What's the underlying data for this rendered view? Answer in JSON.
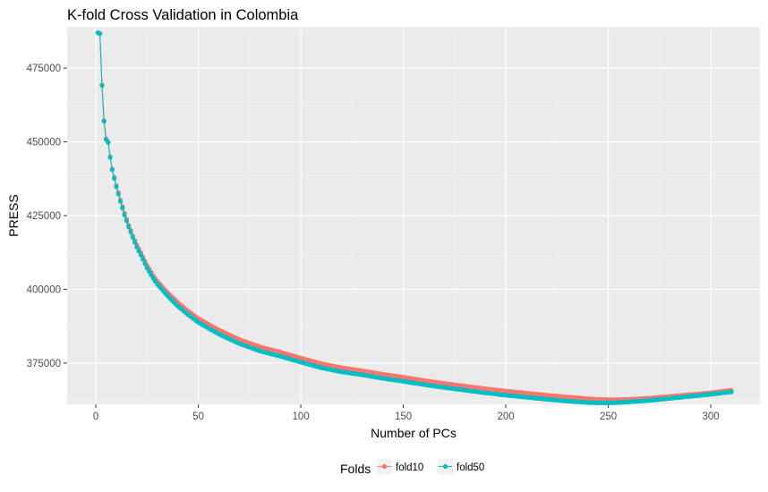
{
  "chart_data": {
    "type": "line",
    "title": "K-fold Cross Validation in Colombia",
    "xlabel": "Number of PCs",
    "ylabel": "PRESS",
    "xlim": [
      -14,
      324
    ],
    "ylim": [
      361000,
      489000
    ],
    "x_ticks": [
      0,
      50,
      100,
      150,
      200,
      250,
      300
    ],
    "x_tick_labels": [
      "0",
      "50",
      "100",
      "150",
      "200",
      "250",
      "300"
    ],
    "y_ticks": [
      375000,
      400000,
      425000,
      450000,
      475000
    ],
    "y_tick_labels": [
      "375000",
      "400000",
      "425000",
      "450000",
      "475000"
    ],
    "grid": true,
    "background": "#ebebeb",
    "legend": {
      "title": "Folds",
      "position": "bottom"
    },
    "x_range": [
      1,
      310
    ],
    "series": [
      {
        "name": "fold10",
        "color": "#f8766d",
        "x": [
          1,
          2,
          3,
          4,
          5,
          6,
          7,
          8,
          9,
          10,
          12,
          14,
          16,
          18,
          20,
          22,
          25,
          28,
          30,
          35,
          40,
          45,
          50,
          60,
          70,
          80,
          90,
          100,
          110,
          120,
          130,
          140,
          150,
          160,
          170,
          180,
          190,
          200,
          210,
          220,
          230,
          240,
          245,
          250,
          255,
          260,
          270,
          280,
          290,
          300,
          310
        ],
        "values": [
          487000,
          486800,
          469300,
          457200,
          451000,
          450000,
          445000,
          440800,
          438000,
          435200,
          430300,
          425800,
          421800,
          418200,
          415000,
          412400,
          408100,
          404600,
          402700,
          398900,
          395500,
          392600,
          390100,
          386200,
          383000,
          380500,
          378700,
          376700,
          374800,
          373400,
          372400,
          371200,
          370200,
          369100,
          368100,
          367200,
          366300,
          365500,
          364800,
          364100,
          363500,
          362900,
          362700,
          362600,
          362600,
          362700,
          363100,
          363700,
          364300,
          364900,
          365800
        ]
      },
      {
        "name": "fold50",
        "color": "#00bfc4",
        "x": [
          1,
          2,
          3,
          4,
          5,
          6,
          7,
          8,
          9,
          10,
          12,
          14,
          16,
          18,
          20,
          22,
          25,
          28,
          30,
          35,
          40,
          45,
          50,
          60,
          70,
          80,
          90,
          100,
          110,
          120,
          130,
          140,
          150,
          160,
          170,
          180,
          190,
          200,
          210,
          220,
          230,
          240,
          245,
          250,
          255,
          260,
          270,
          280,
          290,
          300,
          310
        ],
        "values": [
          487000,
          486700,
          469100,
          457000,
          450800,
          449800,
          444700,
          440500,
          437600,
          434800,
          429800,
          425200,
          421200,
          417600,
          414300,
          411600,
          407200,
          403700,
          401700,
          397800,
          394300,
          391400,
          388800,
          384800,
          381600,
          379100,
          377300,
          375300,
          373400,
          372000,
          371000,
          369800,
          368800,
          367700,
          366700,
          365800,
          364900,
          364100,
          363400,
          362700,
          362100,
          361600,
          361500,
          361500,
          361600,
          361800,
          362300,
          363000,
          363700,
          364400,
          365200
        ]
      }
    ]
  }
}
